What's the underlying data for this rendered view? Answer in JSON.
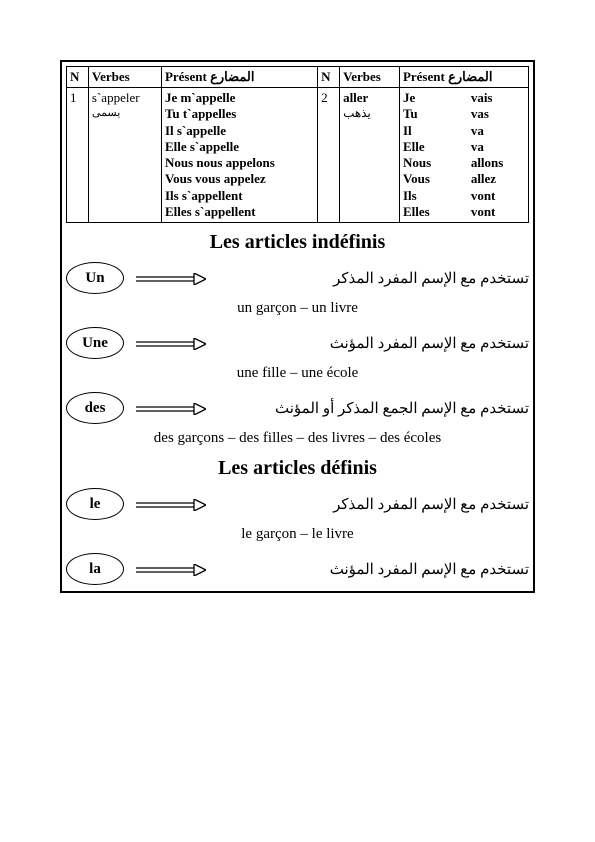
{
  "table": {
    "headers": {
      "n": "N",
      "verbes": "Verbes",
      "present": "Présent",
      "present_ar": "المضارع"
    },
    "row1": {
      "n": "1",
      "verb": "s`appeler",
      "verb_ar": "يسمى",
      "conj": [
        "Je m`appelle",
        "Tu t`appelles",
        "Il  s`appelle",
        "Elle s`appelle",
        "Nous nous appelons",
        "Vous vous appelez",
        "Ils s`appellent",
        "Elles s`appellent"
      ]
    },
    "row2": {
      "n": "2",
      "verb": "aller",
      "verb_ar": "يذهب",
      "pronouns": [
        "Je",
        "Tu",
        "Il",
        "Elle",
        "Nous",
        "Vous",
        "Ils",
        "Elles"
      ],
      "forms": [
        "vais",
        "vas",
        "va",
        "va",
        "allons",
        "allez",
        "vont",
        "vont"
      ]
    }
  },
  "section1": {
    "title": "Les articles indéfinis",
    "items": [
      {
        "label": "Un",
        "usage_ar": "تستخدم مع الإسم المفرد المذكر",
        "example": "un garçon – un livre"
      },
      {
        "label": "Une",
        "usage_ar": "تستخدم مع الإسم المفرد المؤنث",
        "example": "une fille – une école"
      },
      {
        "label": "des",
        "usage_ar": "تستخدم مع الإسم الجمع المذكر أو المؤنث",
        "example": "des garçons – des filles – des livres – des écoles"
      }
    ]
  },
  "section2": {
    "title": "Les articles définis",
    "items": [
      {
        "label": "le",
        "usage_ar": "تستخدم مع الإسم المفرد المذكر",
        "example": "le garçon – le livre"
      },
      {
        "label": "la",
        "usage_ar": "تستخدم مع الإسم المفرد المؤنث",
        "example": ""
      }
    ]
  },
  "colors": {
    "border": "#000000",
    "text": "#000000",
    "bg": "#ffffff"
  }
}
